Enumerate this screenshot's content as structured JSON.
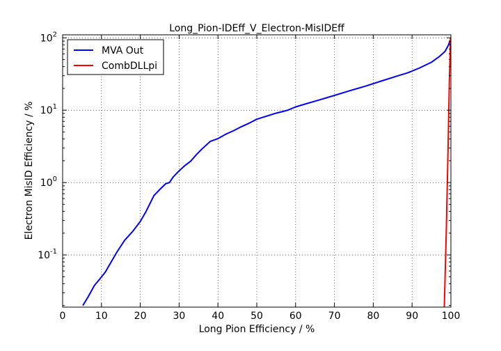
{
  "chart_data": {
    "type": "line",
    "title": "Long_Pion-IDEff_V_Electron-MisIDEff",
    "xlabel": "Long Pion Efficiency / %",
    "ylabel": "Electron MisID Efficiency / %",
    "xlim": [
      0,
      100
    ],
    "ylim": [
      0.019,
      110
    ],
    "yscale": "log",
    "grid": true,
    "legend_position": "top-left",
    "x_ticks": [
      "0",
      "10",
      "20",
      "30",
      "40",
      "50",
      "60",
      "70",
      "80",
      "90",
      "100"
    ],
    "y_ticks": [
      {
        "base": "10",
        "exp": "-1",
        "value": 0.1
      },
      {
        "base": "10",
        "exp": "0",
        "value": 1
      },
      {
        "base": "10",
        "exp": "1",
        "value": 10
      },
      {
        "base": "10",
        "exp": "2",
        "value": 100
      }
    ],
    "series": [
      {
        "name": "MVA Out",
        "color": "#0000ff",
        "x": [
          5.2,
          6.5,
          8.2,
          9.5,
          11,
          12.5,
          14,
          16,
          18,
          20,
          21.5,
          23.5,
          25,
          26.5,
          27.5,
          28.5,
          30,
          31.5,
          33,
          34.5,
          36,
          38,
          40,
          42,
          44,
          46,
          48,
          50,
          52,
          55,
          58,
          60,
          63,
          66,
          70,
          74,
          78,
          82,
          86,
          89,
          92,
          95,
          97,
          98.5,
          99.3,
          99.8
        ],
        "y": [
          0.02,
          0.026,
          0.038,
          0.046,
          0.058,
          0.08,
          0.11,
          0.16,
          0.21,
          0.29,
          0.4,
          0.66,
          0.8,
          0.96,
          1.0,
          1.2,
          1.45,
          1.72,
          1.98,
          2.45,
          2.95,
          3.7,
          4.05,
          4.65,
          5.2,
          5.9,
          6.6,
          7.5,
          8.1,
          9.1,
          10.0,
          11.1,
          12.4,
          13.8,
          16.0,
          18.6,
          21.5,
          25.2,
          29.5,
          33.0,
          38.5,
          46.0,
          55.0,
          65.0,
          78.0,
          92.0
        ]
      },
      {
        "name": "CombDLLpi",
        "color": "#ff0000",
        "x": [
          98.3,
          98.8,
          99.2,
          99.6,
          99.9
        ],
        "y": [
          0.019,
          0.2,
          2.0,
          25.0,
          100.0
        ]
      }
    ]
  }
}
